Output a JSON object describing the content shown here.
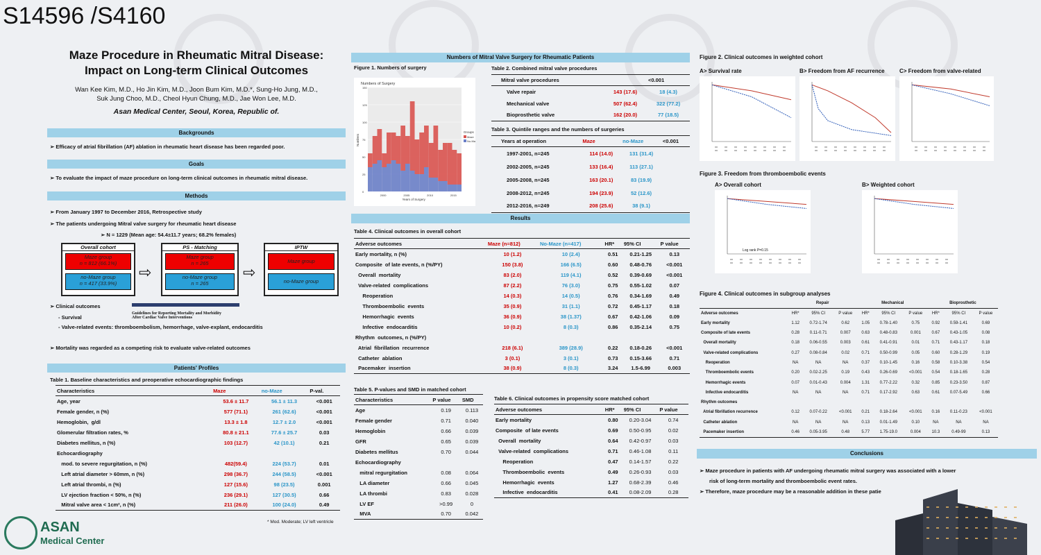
{
  "code": "S14596 /S4160",
  "title1": "Maze Procedure in Rheumatic Mitral Disease:",
  "title2": "Impact on Long-term Clinical Outcomes",
  "authors1": "Wan Kee Kim, M.D., Ho Jin Kim, M.D.,  Joon Bum Kim, M.D.*, Sung-Ho Jung, M.D.,",
  "authors2": "Suk Jung Choo, M.D., Cheol Hyun Chung, M.D., Jae Won Lee, M.D.",
  "institution": "Asan Medical Center, Seoul, Korea, Republic of.",
  "backgrounds": {
    "head": "Backgrounds",
    "text": "➢  Efficacy of atrial fibrillation (AF) ablation in rheumatic heart disease has been regarded poor."
  },
  "goals": {
    "head": "Goals",
    "text": "➢  To evaluate the impact of maze procedure on long-term clinical outcomes in rheumatic mitral disease."
  },
  "methods": {
    "head": "Methods",
    "l1": "➢     From January 1997 to December 2016, Retrospective  study",
    "l2": "➢     The patients undergoing Mitral valve surgery for rheumatic heart disease",
    "l3": "➢     N = 1229 (Mean age: 54.4±11.7 years; 68.2% females)",
    "overall": "Overall cohort",
    "maze1": "Maze group",
    "maze1n": "n = 812 (66.1%)",
    "nomaze1": "no-Maze group",
    "nomaze1n": "n = 417 (33.9%)",
    "ps": "PS - Matching",
    "maze2": "Maze group",
    "maze2n": "n = 265",
    "nomaze2": "no-Maze group",
    "nomaze2n": "n = 265",
    "iptw": "IPTW",
    "maze3": "Maze group",
    "nomaze3": "no-Maze group",
    "co": "➢      Clinical  outcomes",
    "co1": "- Survival",
    "co2": "- Valve-related  events:  thromboembolism,  hemorrhage,  valve-explant,  endocarditis",
    "guide1": "Guidelines for Reporting Mortality and Morbidity",
    "guide2": "After Cardiac Valve Interventions",
    "mort": "➢   Mortality was regarded as a competing risk to evaluate valve-related outcomes"
  },
  "profiles": {
    "head": "Patients' Profiles",
    "t1title": "Table 1. Baseline characteristics and preoperative echocardiographic findings",
    "cols": [
      "Characteristics",
      "Maze",
      "no-Maze",
      "P-val."
    ],
    "rows": [
      [
        "Age, year",
        "53.6 ± 11.7",
        "56.1 ± 11.3",
        "<0.001"
      ],
      [
        "Female gender, n (%)",
        "577 (71.1)",
        "261 (62.6)",
        "<0.001"
      ],
      [
        "Hemoglobin,  g/dl",
        "13.3 ± 1.8",
        "12.7 ± 2.0",
        "<0.001"
      ],
      [
        "Glomerular filtration rates, %",
        "80.8 ± 21.1",
        "77.6 ± 25.7",
        "0.03"
      ],
      [
        "Diabetes mellitus, n (%)",
        "103 (12.7)",
        "42 (10.1)",
        "0.21"
      ],
      [
        "Echocardiography",
        "",
        "",
        ""
      ],
      [
        "   mod. to severe regurgitation, n (%)",
        "482(59.4)",
        "224 (53.7)",
        "0.01"
      ],
      [
        "   Left atrial diameter > 60mm, n (%)",
        "298 (36.7)",
        "244 (58.5)",
        "<0.001"
      ],
      [
        "   Left atrial thrombi, n (%)",
        "127 (15.6)",
        "98 (23.5)",
        "0.001"
      ],
      [
        "   LV ejection fraction < 50%, n (%)",
        "236 (29.1)",
        "127 (30.5)",
        "0.66"
      ],
      [
        "   Mitral valve area < 1cm², n (%)",
        "211 (26.0)",
        "100 (24.0)",
        "0.49"
      ]
    ],
    "note": "*  Mod. Moderate;  LV left ventricle"
  },
  "numbers": {
    "head": "Numbers of Mitral Valve Surgery for Rheumatic Patients",
    "fig1": "Figure 1. Numbers of surgery",
    "fig1inner": "Numbers of Surgery",
    "fig1x": "Years of Surgery",
    "fig1y": "Numbers",
    "legend_title": "Groups",
    "legend": [
      "Maze",
      "No-Maze"
    ],
    "t2title": "Table 2. Combined mitral valve procedures",
    "t2head": "Mitral valve procedures",
    "t2p": "<0.001",
    "t2rows": [
      [
        "Valve repair",
        "143 (17.6)",
        "18 (4.3)"
      ],
      [
        "Mechanical valve",
        "507 (62.4)",
        "322 (77.2)"
      ],
      [
        "Bioprosthetic valve",
        "162 (20.0)",
        "77 (18.5)"
      ]
    ],
    "t3title": "Table 3. Quintile ranges and the numbers of surgeries",
    "t3cols": [
      "Years at operation",
      "Maze",
      "no-Maze",
      "<0.001"
    ],
    "t3rows": [
      [
        "1997-2001, n=245",
        "114 (14.0)",
        "131 (31.4)"
      ],
      [
        "2002-2005, n=245",
        "133 (16.4)",
        "113 (27.1)"
      ],
      [
        "2005-2008, n=245",
        "163 (20.1)",
        "83 (19.9)"
      ],
      [
        "2008-2012, n=245",
        "194 (23.9)",
        "52 (12.6)"
      ],
      [
        "2012-2016, n=249",
        "208 (25.6)",
        "38 (9.1)"
      ]
    ]
  },
  "chart_data": {
    "type": "bar",
    "title": "Numbers of Surgery",
    "xlabel": "Years of Surgery",
    "ylabel": "Numbers",
    "ylim": [
      0,
      150
    ],
    "categories": [
      "1997",
      "1998",
      "1999",
      "2000",
      "2001",
      "2002",
      "2003",
      "2004",
      "2005",
      "2006",
      "2007",
      "2008",
      "2009",
      "2010",
      "2011",
      "2012",
      "2013",
      "2014",
      "2015",
      "2016"
    ],
    "xticks": [
      "2000",
      "2005",
      "2010",
      "2015"
    ],
    "yticks": [
      "0",
      "25",
      "50",
      "75",
      "100",
      "125",
      "150"
    ],
    "series": [
      {
        "name": "Maze",
        "values": [
          20,
          40,
          45,
          20,
          45,
          40,
          40,
          65,
          40,
          100,
          50,
          60,
          60,
          50,
          75,
          45,
          55,
          60,
          50,
          45
        ]
      },
      {
        "name": "No-Maze",
        "values": [
          35,
          40,
          45,
          35,
          40,
          45,
          40,
          30,
          40,
          30,
          25,
          25,
          35,
          20,
          20,
          15,
          15,
          10,
          10,
          10
        ]
      }
    ]
  },
  "results": {
    "head": "Results",
    "t4title": "Table 4. Clinical outcomes in overall cohort",
    "t4cols": [
      "Adverse  outcomes",
      "Maze (n=812)",
      "No-Maze (n=417)",
      "HR*",
      "95% CI",
      "P value"
    ],
    "t4rows": [
      [
        "Early mortality, n (%)",
        "10 (1.2)",
        "10 (2.4)",
        "0.51",
        "0.21-1.25",
        "0.13"
      ],
      [
        "Composite  of late events, n (%/PY)",
        "150 (3.8)",
        "166 (6.5)",
        "0.60",
        "0.48-0.76",
        "<0.001"
      ],
      [
        "  Overall  mortality",
        "83 (2.0)",
        "119 (4.1)",
        "0.52",
        "0.39-0.69",
        "<0.001"
      ],
      [
        "  Valve-related  complications",
        "87 (2.2)",
        "76 (3.0)",
        "0.75",
        "0.55-1.02",
        "0.07"
      ],
      [
        "     Reoperation",
        "14 (0.3)",
        "14 (0.5)",
        "0.76",
        "0.34-1.69",
        "0.49"
      ],
      [
        "     Thromboembolic  events",
        "35 (0.9)",
        "31 (1.1)",
        "0.72",
        "0.45-1.17",
        "0.18"
      ],
      [
        "     Hemorrhagic  events",
        "36 (0.9)",
        "38 (1.37)",
        "0.67",
        "0.42-1.06",
        "0.09"
      ],
      [
        "     Infective  endocarditis",
        "10 (0.2)",
        "8 (0.3)",
        "0.86",
        "0.35-2.14",
        "0.75"
      ],
      [
        "Rhythm  outcomes, n (%/PY)",
        "",
        "",
        "",
        "",
        ""
      ],
      [
        "  Atrial  fibrillation  recurrence",
        "218 (6.1)",
        "389 (28.9)",
        "0.22",
        "0.18-0.26",
        "<0.001"
      ],
      [
        "  Catheter  ablation",
        "3 (0.1)",
        "3 (0.1)",
        "0.73",
        "0.15-3.66",
        "0.71"
      ],
      [
        "  Pacemaker  insertion",
        "38 (0.9)",
        "8 (0.3)",
        "3.24",
        "1.5-6.99",
        "0.003"
      ]
    ],
    "t5title": "Table 5. P-values and SMD in matched cohort",
    "t5cols": [
      "Characteristics",
      "P value",
      "SMD"
    ],
    "t5rows": [
      [
        "Age",
        "0.19",
        "0.113"
      ],
      [
        "Female gender",
        "0.71",
        "0.040"
      ],
      [
        "Hemoglobin",
        "0.66",
        "0.039"
      ],
      [
        "GFR",
        "0.65",
        "0.039"
      ],
      [
        "Diabetes mellitus",
        "0.70",
        "0.044"
      ],
      [
        "Echocardiography",
        "",
        ""
      ],
      [
        "   mitral regurgitation",
        "0.08",
        "0.064"
      ],
      [
        "   LA diameter",
        "0.66",
        "0.045"
      ],
      [
        "   LA thrombi",
        "0.83",
        "0.028"
      ],
      [
        "   LV EF",
        ">0.99",
        "0"
      ],
      [
        "   MVA",
        "0.70",
        "0.042"
      ]
    ],
    "t6title": "Table 6. Clinical outcomes in propensity score matched cohort",
    "t6cols": [
      "Adverse  outcomes",
      "HR*",
      "95% CI",
      "P value"
    ],
    "t6rows": [
      [
        "Early mortality",
        "0.80",
        "0.20-3.04",
        "0.74"
      ],
      [
        "Composite  of late events",
        "0.69",
        "0.50-0.95",
        "0.02"
      ],
      [
        "  Overall  mortality",
        "0.64",
        "0.42-0.97",
        "0.03"
      ],
      [
        "  Valve-related  complications",
        "0.71",
        "0.46-1.08",
        "0.11"
      ],
      [
        "     Reoperation",
        "0.47",
        "0.14-1.57",
        "0.22"
      ],
      [
        "     Thromboembolic  events",
        "0.49",
        "0.26-0.93",
        "0.03"
      ],
      [
        "     Hemorrhagic  events",
        "1.27",
        "0.68-2.39",
        "0.46"
      ],
      [
        "     Infective  endocarditis",
        "0.41",
        "0.08-2.09",
        "0.28"
      ]
    ]
  },
  "fig2": {
    "title": "Figure 2. Clinical outcomes in weighted cohort",
    "a": "A> Survival rate",
    "b": "B> Freedom from AF recurrence",
    "c": "C> Freedom from valve-related"
  },
  "fig3": {
    "title": "Figure 3. Freedom from thromboembolic events",
    "a": "A> Overall cohort",
    "b": "B> Weighted cohort",
    "alog": "Log rank P=0.15"
  },
  "fig4": {
    "title": "Figure 4. Clinical outcomes in subgroup analyses",
    "groups": [
      "Repair",
      "Mechanical",
      "Bioprosthetic"
    ],
    "sub": [
      "HR*",
      "95% CI",
      "P value"
    ],
    "rowhead": "Adverse outcomes",
    "rows": [
      [
        "Early mortality",
        "1.12",
        "0.72-1.74",
        "0.62",
        "1.05",
        "0.78-1.40",
        "0.75",
        "0.92",
        "0.59-1.41",
        "0.69"
      ],
      [
        "Composite of late events",
        "0.28",
        "0.11-0.71",
        "0.007",
        "0.63",
        "0.48-0.83",
        "0.001",
        "0.67",
        "0.43-1.05",
        "0.08"
      ],
      [
        "  Overall mortality",
        "0.18",
        "0.06-0.55",
        "0.003",
        "0.61",
        "0.41-0.91",
        "0.01",
        "0.71",
        "0.43-1.17",
        "0.18"
      ],
      [
        "  Valve-related complications",
        "0.27",
        "0.08-0.84",
        "0.02",
        "0.71",
        "0.50-0.99",
        "0.05",
        "0.60",
        "0.28-1.29",
        "0.19"
      ],
      [
        "    Reoperation",
        "NA",
        "NA",
        "NA",
        "0.37",
        "0.10-1.45",
        "0.16",
        "0.58",
        "0.10-3.38",
        "0.54"
      ],
      [
        "    Thromboembolic events",
        "0.20",
        "0.02-2.25",
        "0.19",
        "0.43",
        "0.26-0.69",
        "<0.001",
        "0.54",
        "0.18-1.65",
        "0.28"
      ],
      [
        "    Hemorrhagic events",
        "0.07",
        "0.01-0.43",
        "0.004",
        "1.31",
        "0.77-2.22",
        "0.32",
        "0.85",
        "0.23-3.50",
        "0.87"
      ],
      [
        "    Infective endocarditis",
        "NA",
        "NA",
        "NA",
        "0.71",
        "0.17-2.92",
        "0.63",
        "0.61",
        "0.07-5.49",
        "0.66"
      ],
      [
        "Rhythm outcomes",
        "",
        "",
        "",
        "",
        "",
        "",
        "",
        "",
        ""
      ],
      [
        "  Atrial fibrillation recurrence",
        "0.12",
        "0.07-0.22",
        "<0.001",
        "0.21",
        "0.18-2.64",
        "<0.001",
        "0.16",
        "0.11-0.23",
        "<0.001"
      ],
      [
        "  Catheter ablation",
        "NA",
        "NA",
        "NA",
        "0.13",
        "0.01-1.49",
        "0.10",
        "NA",
        "NA",
        "NA"
      ],
      [
        "  Pacemaker insertion",
        "0.46",
        "0.05-3.95",
        "0.48",
        "5.77",
        "1.75-19.0",
        "0.004",
        "10.3",
        "0.49-99",
        "0.13"
      ]
    ]
  },
  "conclusions": {
    "head": "Conclusions",
    "l1": "➢   Maze procedure in patients with AF undergoing rheumatic mitral surgery was associated with a lower",
    "l1b": "risk of long-term mortality and thromboembolic event rates.",
    "l2": "➢   Therefore, maze procedure may be a reasonable addition in these patients."
  },
  "logo": {
    "name": "ASAN",
    "sub": "Medical Center"
  },
  "colors": {
    "accent": "#9fd1e8",
    "maze": "#e00000",
    "nomaze": "#2aa0d8"
  }
}
